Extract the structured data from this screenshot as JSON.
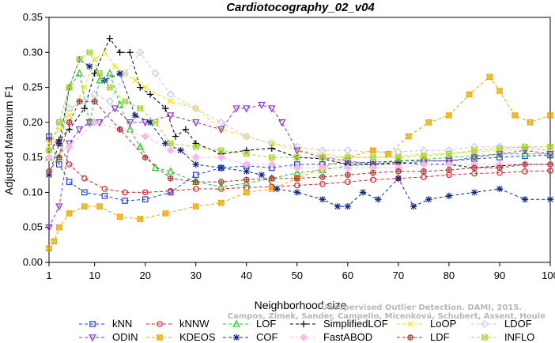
{
  "chart_data": {
    "type": "line",
    "title": "Cardiotocography_02_v04",
    "xlabel": "Neighborhood size",
    "ylabel": "Adjusted Maximum F1",
    "xlim": [
      1,
      100
    ],
    "ylim": [
      0,
      0.35
    ],
    "xticks": [
      "1",
      "10",
      "20",
      "30",
      "40",
      "50",
      "60",
      "70",
      "80",
      "90",
      "100"
    ],
    "yticks": [
      "0.00",
      "0.05",
      "0.10",
      "0.15",
      "0.20",
      "0.25",
      "0.30",
      "0.35"
    ],
    "watermark": [
      "Campos, Zimek, Sander, Campello, Micenková, Schubert, Assent, Houle",
      "Unsupervised Outlier Detection. DAMI, 2015."
    ],
    "series": [
      {
        "name": "kNN",
        "color": "#1f3fe0",
        "marker": "square",
        "x": [
          1,
          3,
          5,
          8,
          12,
          16,
          20,
          25,
          30,
          35,
          40,
          45,
          50,
          55,
          60,
          65,
          70,
          75,
          80,
          85,
          90,
          95,
          100
        ],
        "y": [
          0.18,
          0.14,
          0.115,
          0.1,
          0.095,
          0.088,
          0.09,
          0.1,
          0.125,
          0.135,
          0.138,
          0.135,
          0.14,
          0.14,
          0.142,
          0.143,
          0.145,
          0.145,
          0.145,
          0.148,
          0.15,
          0.152,
          0.153
        ]
      },
      {
        "name": "kNNW",
        "color": "#e02020",
        "marker": "circle",
        "x": [
          1,
          3,
          5,
          8,
          12,
          16,
          20,
          25,
          30,
          35,
          40,
          45,
          50,
          55,
          60,
          65,
          70,
          75,
          80,
          85,
          90,
          95,
          100
        ],
        "y": [
          0.175,
          0.17,
          0.14,
          0.12,
          0.105,
          0.1,
          0.1,
          0.102,
          0.105,
          0.105,
          0.107,
          0.108,
          0.11,
          0.112,
          0.115,
          0.118,
          0.12,
          0.122,
          0.125,
          0.127,
          0.128,
          0.13,
          0.131
        ]
      },
      {
        "name": "LOF",
        "color": "#22cc22",
        "marker": "triangle-up",
        "x": [
          1,
          3,
          5,
          7,
          9,
          11,
          13,
          15,
          17,
          19,
          22,
          25,
          30,
          35,
          40,
          45,
          50,
          55,
          60,
          65,
          70,
          75,
          80,
          85,
          90,
          95,
          100
        ],
        "y": [
          0.15,
          0.15,
          0.25,
          0.27,
          0.2,
          0.26,
          0.27,
          0.225,
          0.19,
          0.165,
          0.135,
          0.13,
          0.115,
          0.108,
          0.113,
          0.12,
          0.128,
          0.132,
          0.138,
          0.14,
          0.145,
          0.147,
          0.15,
          0.152,
          0.155,
          0.155,
          0.155
        ]
      },
      {
        "name": "SimplifiedLOF",
        "color": "#000000",
        "marker": "plus",
        "x": [
          1,
          3,
          5,
          8,
          10,
          13,
          15,
          17,
          19,
          21,
          24,
          26,
          28,
          30,
          35,
          40,
          45,
          50,
          55,
          60,
          65,
          70,
          75,
          80,
          85,
          90,
          95,
          100
        ],
        "y": [
          0.16,
          0.175,
          0.19,
          0.22,
          0.27,
          0.32,
          0.3,
          0.3,
          0.25,
          0.24,
          0.22,
          0.18,
          0.19,
          0.17,
          0.155,
          0.16,
          0.163,
          0.15,
          0.148,
          0.14,
          0.14,
          0.143,
          0.14,
          0.14,
          0.135,
          0.138,
          0.14,
          0.14
        ]
      },
      {
        "name": "LoOP",
        "color": "#ffe000",
        "marker": "x",
        "x": [
          1,
          3,
          5,
          8,
          10,
          12,
          14,
          16,
          18,
          20,
          25,
          30,
          35,
          40,
          45,
          50,
          55,
          60,
          65,
          70,
          75,
          80,
          85,
          90,
          95,
          100
        ],
        "y": [
          0.17,
          0.19,
          0.21,
          0.25,
          0.29,
          0.3,
          0.28,
          0.27,
          0.26,
          0.25,
          0.23,
          0.22,
          0.19,
          0.18,
          0.17,
          0.16,
          0.155,
          0.15,
          0.15,
          0.152,
          0.155,
          0.155,
          0.158,
          0.16,
          0.162,
          0.16
        ]
      },
      {
        "name": "LDOF",
        "color": "#c8c8f0",
        "marker": "diamond",
        "x": [
          1,
          3,
          5,
          8,
          10,
          13,
          16,
          19,
          22,
          25,
          30,
          35,
          40,
          45,
          50,
          55,
          60,
          65,
          70,
          75,
          80,
          85,
          90,
          95,
          100
        ],
        "y": [
          0.16,
          0.2,
          0.22,
          0.23,
          0.24,
          0.23,
          0.27,
          0.3,
          0.27,
          0.24,
          0.22,
          0.2,
          0.18,
          0.17,
          0.165,
          0.16,
          0.16,
          0.158,
          0.158,
          0.16,
          0.16,
          0.165,
          0.165,
          0.165,
          0.16
        ]
      },
      {
        "name": "ODIN",
        "color": "#9030d8",
        "marker": "triangle-down",
        "x": [
          1,
          3,
          5,
          7,
          9,
          11,
          14,
          17,
          20,
          25,
          30,
          35,
          38,
          40,
          43,
          45,
          47,
          50,
          55,
          60,
          65,
          70,
          75,
          80,
          85,
          90,
          95,
          100
        ],
        "y": [
          0.05,
          0.08,
          0.17,
          0.19,
          0.2,
          0.2,
          0.22,
          0.2,
          0.2,
          0.21,
          0.2,
          0.19,
          0.22,
          0.22,
          0.225,
          0.22,
          0.2,
          0.16,
          0.15,
          0.145,
          0.14,
          0.14,
          0.145,
          0.145,
          0.15,
          0.155,
          0.16,
          0.155
        ]
      },
      {
        "name": "KDEOS",
        "color": "#f0a800",
        "marker": "square-x",
        "x": [
          1,
          2,
          3,
          5,
          8,
          11,
          15,
          19,
          24,
          30,
          35,
          40,
          45,
          50,
          55,
          60,
          65,
          68,
          72,
          76,
          80,
          84,
          88,
          90,
          93,
          96,
          100
        ],
        "y": [
          0.02,
          0.03,
          0.05,
          0.07,
          0.08,
          0.08,
          0.065,
          0.062,
          0.07,
          0.08,
          0.085,
          0.1,
          0.105,
          0.12,
          0.135,
          0.15,
          0.16,
          0.155,
          0.18,
          0.2,
          0.21,
          0.24,
          0.265,
          0.245,
          0.21,
          0.2,
          0.21
        ]
      },
      {
        "name": "COF",
        "color": "#102888",
        "marker": "asterisk",
        "x": [
          1,
          3,
          5,
          7,
          9,
          12,
          15,
          18,
          21,
          24,
          27,
          30,
          35,
          40,
          43,
          46,
          50,
          55,
          58,
          60,
          63,
          66,
          70,
          73,
          76,
          80,
          85,
          90,
          95,
          100
        ],
        "y": [
          0.125,
          0.17,
          0.25,
          0.29,
          0.28,
          0.26,
          0.27,
          0.21,
          0.2,
          0.17,
          0.16,
          0.14,
          0.135,
          0.13,
          0.125,
          0.105,
          0.1,
          0.09,
          0.08,
          0.08,
          0.1,
          0.09,
          0.12,
          0.08,
          0.09,
          0.095,
          0.1,
          0.105,
          0.09,
          0.09
        ]
      },
      {
        "name": "FastABOD",
        "color": "#ffb8e8",
        "marker": "diamond-filled",
        "x": [
          1,
          5,
          10,
          15,
          20,
          25,
          30,
          35,
          40,
          45,
          50,
          55,
          60,
          65,
          70,
          75,
          80,
          85,
          90,
          95,
          100
        ],
        "y": [
          0.15,
          0.165,
          0.2,
          0.19,
          0.18,
          0.16,
          0.15,
          0.15,
          0.14,
          0.14,
          0.135,
          0.135,
          0.135,
          0.135,
          0.135,
          0.14,
          0.14,
          0.14,
          0.14,
          0.14,
          0.14
        ]
      },
      {
        "name": "LDF",
        "color": "#b03030",
        "marker": "circle-plus",
        "x": [
          1,
          3,
          5,
          7,
          10,
          15,
          20,
          25,
          30,
          35,
          40,
          45,
          50,
          55,
          60,
          65,
          70,
          75,
          80,
          85,
          90,
          95,
          100
        ],
        "y": [
          0.13,
          0.15,
          0.2,
          0.23,
          0.23,
          0.19,
          0.15,
          0.12,
          0.115,
          0.115,
          0.118,
          0.12,
          0.12,
          0.122,
          0.125,
          0.128,
          0.13,
          0.13,
          0.132,
          0.135,
          0.135,
          0.14,
          0.14
        ]
      },
      {
        "name": "INFLO",
        "color": "#a8d838",
        "marker": "star",
        "x": [
          1,
          3,
          5,
          7,
          9,
          11,
          13,
          16,
          19,
          22,
          25,
          30,
          35,
          40,
          45,
          50,
          55,
          60,
          65,
          70,
          75,
          80,
          85,
          90,
          95,
          100
        ],
        "y": [
          0.16,
          0.2,
          0.25,
          0.29,
          0.3,
          0.27,
          0.25,
          0.23,
          0.22,
          0.2,
          0.17,
          0.165,
          0.16,
          0.155,
          0.15,
          0.15,
          0.15,
          0.15,
          0.15,
          0.15,
          0.152,
          0.155,
          0.16,
          0.163,
          0.165,
          0.165
        ]
      }
    ]
  }
}
